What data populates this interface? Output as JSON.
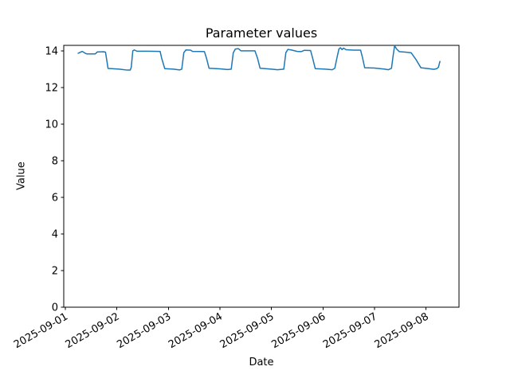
{
  "figure": {
    "title": "Parameter values",
    "xlabel": "Date",
    "ylabel": "Value"
  },
  "chart_data": {
    "type": "line",
    "title": "Parameter values",
    "xlabel": "Date",
    "ylabel": "Value",
    "grid": false,
    "legend": null,
    "x_unit": "days since 2025-09-01 00:00",
    "xlim": [
      -0.03,
      7.64
    ],
    "ylim": [
      0,
      14.3
    ],
    "y_ticks": [
      0,
      2,
      4,
      6,
      8,
      10,
      12,
      14
    ],
    "x_ticks": [
      {
        "t": 0,
        "label": "2025-09-01"
      },
      {
        "t": 1,
        "label": "2025-09-02"
      },
      {
        "t": 2,
        "label": "2025-09-03"
      },
      {
        "t": 3,
        "label": "2025-09-04"
      },
      {
        "t": 4,
        "label": "2025-09-05"
      },
      {
        "t": 5,
        "label": "2025-09-06"
      },
      {
        "t": 6,
        "label": "2025-09-07"
      },
      {
        "t": 7,
        "label": "2025-09-08"
      }
    ],
    "series": [
      {
        "name": "Parameter values",
        "color": "#1f77b4",
        "points": [
          [
            0.25,
            13.87
          ],
          [
            0.29,
            13.92
          ],
          [
            0.33,
            13.97
          ],
          [
            0.38,
            13.88
          ],
          [
            0.42,
            13.83
          ],
          [
            0.58,
            13.83
          ],
          [
            0.62,
            13.94
          ],
          [
            0.74,
            13.95
          ],
          [
            0.78,
            13.93
          ],
          [
            0.83,
            13.04
          ],
          [
            1.05,
            13.0
          ],
          [
            1.2,
            12.95
          ],
          [
            1.26,
            12.95
          ],
          [
            1.28,
            13.1
          ],
          [
            1.31,
            14.0
          ],
          [
            1.34,
            14.05
          ],
          [
            1.39,
            13.98
          ],
          [
            1.6,
            13.98
          ],
          [
            1.84,
            13.97
          ],
          [
            1.87,
            13.6
          ],
          [
            1.93,
            13.03
          ],
          [
            2.1,
            13.0
          ],
          [
            2.22,
            12.96
          ],
          [
            2.26,
            13.0
          ],
          [
            2.3,
            13.9
          ],
          [
            2.34,
            14.05
          ],
          [
            2.43,
            14.04
          ],
          [
            2.47,
            13.97
          ],
          [
            2.7,
            13.96
          ],
          [
            2.74,
            13.6
          ],
          [
            2.79,
            13.05
          ],
          [
            3.0,
            13.02
          ],
          [
            3.15,
            12.98
          ],
          [
            3.22,
            13.0
          ],
          [
            3.26,
            13.9
          ],
          [
            3.3,
            14.1
          ],
          [
            3.36,
            14.12
          ],
          [
            3.41,
            14.0
          ],
          [
            3.68,
            14.0
          ],
          [
            3.73,
            13.6
          ],
          [
            3.78,
            13.05
          ],
          [
            4.0,
            13.0
          ],
          [
            4.12,
            12.97
          ],
          [
            4.24,
            13.0
          ],
          [
            4.28,
            13.9
          ],
          [
            4.32,
            14.08
          ],
          [
            4.4,
            14.04
          ],
          [
            4.5,
            13.97
          ],
          [
            4.58,
            13.96
          ],
          [
            4.64,
            14.03
          ],
          [
            4.76,
            14.02
          ],
          [
            4.8,
            13.6
          ],
          [
            4.85,
            13.03
          ],
          [
            5.05,
            13.0
          ],
          [
            5.18,
            12.97
          ],
          [
            5.23,
            13.05
          ],
          [
            5.27,
            13.6
          ],
          [
            5.31,
            14.1
          ],
          [
            5.34,
            14.17
          ],
          [
            5.37,
            14.07
          ],
          [
            5.4,
            14.15
          ],
          [
            5.45,
            14.06
          ],
          [
            5.6,
            14.04
          ],
          [
            5.73,
            14.04
          ],
          [
            5.77,
            13.6
          ],
          [
            5.81,
            13.08
          ],
          [
            6.0,
            13.06
          ],
          [
            6.2,
            13.0
          ],
          [
            6.27,
            12.97
          ],
          [
            6.33,
            13.05
          ],
          [
            6.36,
            13.7
          ],
          [
            6.39,
            14.28
          ],
          [
            6.43,
            14.1
          ],
          [
            6.48,
            13.96
          ],
          [
            6.6,
            13.93
          ],
          [
            6.71,
            13.9
          ],
          [
            6.8,
            13.55
          ],
          [
            6.9,
            13.08
          ],
          [
            7.05,
            13.03
          ],
          [
            7.15,
            12.99
          ],
          [
            7.21,
            13.03
          ],
          [
            7.24,
            13.1
          ],
          [
            7.27,
            13.42
          ]
        ]
      }
    ]
  }
}
